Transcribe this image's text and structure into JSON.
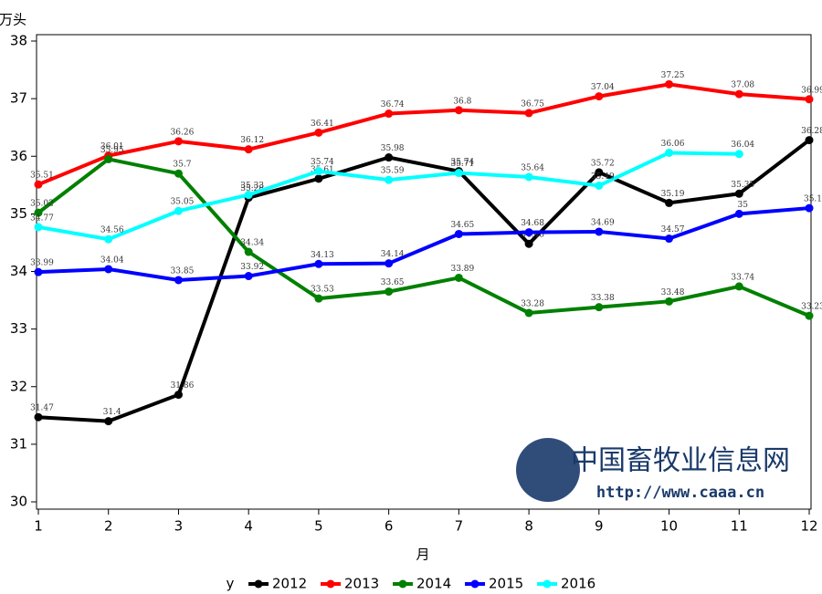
{
  "chart_data": {
    "type": "line",
    "y_label": "万头",
    "x_label": "月",
    "legend_title": "y",
    "x": [
      1,
      2,
      3,
      4,
      5,
      6,
      7,
      8,
      9,
      10,
      11,
      12
    ],
    "xlim": [
      1,
      12
    ],
    "xticks": [
      1,
      2,
      3,
      4,
      5,
      6,
      7,
      8,
      9,
      10,
      11,
      12
    ],
    "ylim": [
      30,
      38
    ],
    "yticks": [
      30,
      31,
      32,
      33,
      34,
      35,
      36,
      37,
      38
    ],
    "legend_position": "bottom",
    "series": [
      {
        "name": "2012",
        "color": "#000000",
        "values": [
          31.47,
          31.4,
          31.86,
          35.28,
          35.61,
          35.98,
          35.74,
          34.48,
          35.72,
          35.19,
          35.35,
          36.28
        ]
      },
      {
        "name": "2013",
        "color": "#ff0000",
        "values": [
          35.51,
          36.01,
          36.26,
          36.12,
          36.41,
          36.74,
          36.8,
          36.75,
          37.04,
          37.25,
          37.08,
          36.99
        ]
      },
      {
        "name": "2014",
        "color": "#008000",
        "values": [
          35.02,
          35.95,
          35.7,
          34.34,
          33.53,
          33.65,
          33.89,
          33.28,
          33.38,
          33.48,
          33.74,
          33.23
        ]
      },
      {
        "name": "2015",
        "color": "#0000ff",
        "values": [
          33.99,
          34.04,
          33.85,
          33.92,
          34.13,
          34.14,
          34.65,
          34.68,
          34.69,
          34.57,
          35,
          35.1
        ]
      },
      {
        "name": "2016",
        "color": "#00ffff",
        "values": [
          34.77,
          34.56,
          35.05,
          35.33,
          35.74,
          35.59,
          35.71,
          35.64,
          35.49,
          36.06,
          36.04,
          null
        ]
      }
    ],
    "watermark": {
      "name": "中国畜牧业信息网",
      "url": "http://www.caaa.cn"
    }
  }
}
